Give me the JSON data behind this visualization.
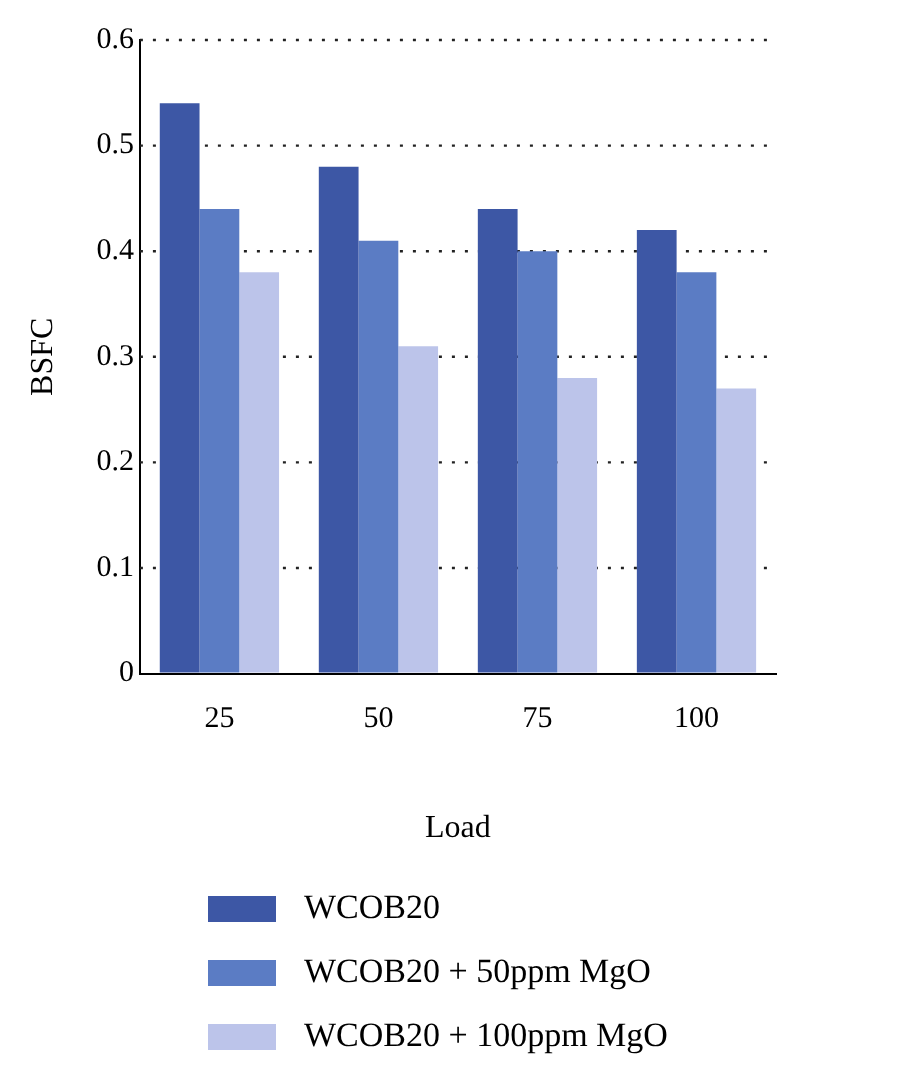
{
  "chart_data": {
    "type": "bar",
    "xlabel": "Load",
    "ylabel": "BSFC",
    "categories": [
      "25",
      "50",
      "75",
      "100"
    ],
    "series": [
      {
        "name": "WCOB20",
        "color": "#3d57a5",
        "values": [
          0.54,
          0.48,
          0.44,
          0.42
        ]
      },
      {
        "name": "WCOB20 + 50ppm MgO",
        "color": "#5b7cc4",
        "values": [
          0.44,
          0.41,
          0.4,
          0.38
        ]
      },
      {
        "name": "WCOB20 + 100ppm MgO",
        "color": "#bcc4ea",
        "values": [
          0.38,
          0.31,
          0.28,
          0.27
        ]
      }
    ],
    "ylim": [
      0,
      0.6
    ],
    "yticks": [
      0,
      0.1,
      0.2,
      0.3,
      0.4,
      0.5,
      0.6
    ],
    "grid": "y",
    "legend": "bottom"
  }
}
